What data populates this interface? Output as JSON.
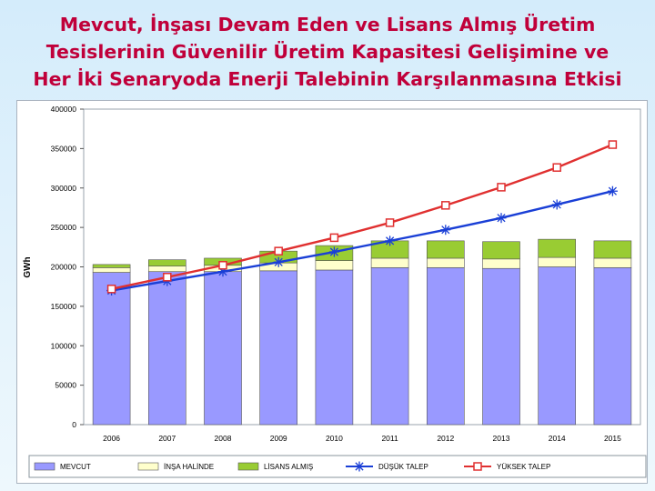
{
  "title_lines": [
    "Mevcut, İnşası Devam Eden ve Lisans Almış Üretim",
    "Tesislerinin Güvenilir Üretim Kapasitesi Gelişimine ve",
    "Her İki Senaryoda Enerji Talebinin Karşılanmasına Etkisi"
  ],
  "chart_data": {
    "type": "bar",
    "stacked": true,
    "categories": [
      "2006",
      "2007",
      "2008",
      "2009",
      "2010",
      "2011",
      "2012",
      "2013",
      "2014",
      "2015"
    ],
    "ylabel": "GWh",
    "ylim": [
      0,
      400000
    ],
    "yticks": [
      0,
      50000,
      100000,
      150000,
      200000,
      250000,
      300000,
      350000,
      400000
    ],
    "ytick_labels": [
      "0",
      "50000",
      "100000",
      "150000",
      "200000",
      "250000",
      "300000",
      "350000",
      "400000"
    ],
    "legend_position": "bottom",
    "series": [
      {
        "name": "MEVCUT",
        "kind": "bar",
        "color": "#9999ff",
        "values": [
          193000,
          194000,
          194000,
          195000,
          196000,
          199000,
          199000,
          198000,
          200000,
          199000
        ]
      },
      {
        "name": "İNŞA HALİNDE",
        "kind": "bar",
        "color": "#ffffcc",
        "values": [
          6000,
          7000,
          8000,
          10000,
          12000,
          12000,
          12000,
          12000,
          12000,
          12000
        ]
      },
      {
        "name": "LİSANS ALMIŞ",
        "kind": "bar",
        "color": "#99cc33",
        "values": [
          4000,
          8000,
          9000,
          15000,
          19000,
          22000,
          22000,
          22000,
          23000,
          22000
        ]
      },
      {
        "name": "DÜŞÜK TALEP",
        "kind": "line",
        "color": "#1a3fd6",
        "marker": "asterisk",
        "values": [
          170000,
          182000,
          194000,
          206000,
          219000,
          233000,
          247000,
          262000,
          279000,
          296000
        ]
      },
      {
        "name": "YÜKSEK TALEP",
        "kind": "line",
        "color": "#e03030",
        "marker": "square",
        "values": [
          172000,
          187000,
          202000,
          220000,
          237000,
          256000,
          278000,
          301000,
          326000,
          355000
        ]
      }
    ]
  }
}
